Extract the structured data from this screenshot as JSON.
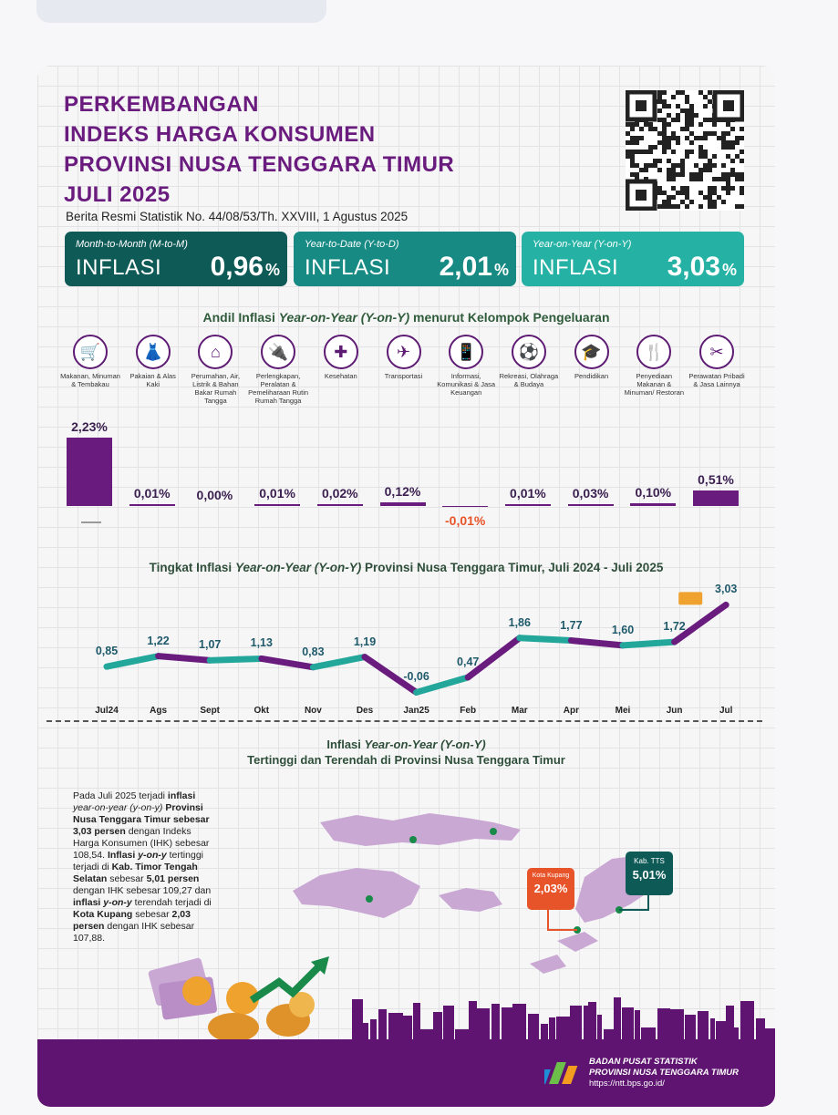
{
  "title": {
    "line1": "PERKEMBANGAN",
    "line2": "INDEKS HARGA KONSUMEN",
    "line3": "PROVINSI NUSA TENGGARA TIMUR",
    "line4": "JULI 2025"
  },
  "subtitle": "Berita Resmi Statistik No. 44/08/53/Th. XXVIII, 1 Agustus 2025",
  "boxes": [
    {
      "label": "Month-to-Month (M-to-M)",
      "word": "INFLASI",
      "value": "0,96",
      "unit": "%",
      "color": "#0d5a57"
    },
    {
      "label": "Year-to-Date (Y-to-D)",
      "word": "INFLASI",
      "value": "2,01",
      "unit": "%",
      "color": "#178a83"
    },
    {
      "label": "Year-on-Year (Y-on-Y)",
      "word": "INFLASI",
      "value": "3,03",
      "unit": "%",
      "color": "#25b2a4"
    }
  ],
  "andil_title": {
    "pre": "Andil Inflasi ",
    "em": "Year-on-Year (Y-on-Y)",
    "post": " menurut Kelompok Pengeluaran"
  },
  "chart_data": [
    {
      "type": "bar",
      "title": "Andil Inflasi Year-on-Year (Y-on-Y) menurut Kelompok Pengeluaran",
      "categories": [
        "Makanan, Minuman & Tembakau",
        "Pakaian & Alas Kaki",
        "Perumahan, Air, Listrik & Bahan Bakar Rumah Tangga",
        "Perlengkapan, Peralatan & Pemeliharaan Rutin Rumah Tangga",
        "Kesehatan",
        "Transportasi",
        "Informasi, Komunikasi & Jasa Keuangan",
        "Rekreasi, Olahraga & Budaya",
        "Pendidikan",
        "Penyediaan Makanan & Minuman/ Restoran",
        "Perawatan Pribadi & Jasa Lainnya"
      ],
      "values": [
        2.23,
        0.01,
        0.0,
        0.01,
        0.02,
        0.12,
        -0.01,
        0.01,
        0.03,
        0.1,
        0.51
      ],
      "value_labels": [
        "2,23%",
        "0,01%",
        "0,00%",
        "0,01%",
        "0,02%",
        "0,12%",
        "-0,01%",
        "0,01%",
        "0,03%",
        "0,10%",
        "0,51%"
      ],
      "ylim": [
        -0.3,
        2.23
      ]
    },
    {
      "type": "line",
      "title": "Tingkat Inflasi Year-on-Year (Y-on-Y) Provinsi Nusa Tenggara Timur, Juli 2024 - Juli 2025",
      "categories": [
        "Jul24",
        "Ags",
        "Sept",
        "Okt",
        "Nov",
        "Des",
        "Jan25",
        "Feb",
        "Mar",
        "Apr",
        "Mei",
        "Jun",
        "Jul"
      ],
      "values": [
        0.85,
        1.22,
        1.07,
        1.13,
        0.83,
        1.19,
        -0.06,
        0.47,
        1.86,
        1.77,
        1.6,
        1.72,
        3.03
      ],
      "value_labels": [
        "0,85",
        "1,22",
        "1,07",
        "1,13",
        "0,83",
        "1,19",
        "-0,06",
        "0,47",
        "1,86",
        "1,77",
        "1,60",
        "1,72",
        "3,03"
      ],
      "ylim": [
        -0.4,
        3.3
      ]
    }
  ],
  "line_title": {
    "pre": "Tingkat Inflasi ",
    "em": "Year-on-Year (Y-on-Y)",
    "post": " Provinsi Nusa Tenggara Timur, Juli 2024 - Juli 2025"
  },
  "map_title": {
    "l1_pre": "Inflasi ",
    "l1_em": "Year-on-Year (Y-on-Y)",
    "l2": "Tertinggi dan Terendah di Provinsi Nusa Tenggara Timur"
  },
  "description": {
    "s1": "Pada Juli 2025 terjadi ",
    "s2": "inflasi",
    "s3": "year-on-year (y-on-y)",
    "s4": "Provinsi Nusa Tenggara Timur",
    "s5": " sebesar 3,03 persen",
    "s6": " dengan Indeks Harga Konsumen (IHK) sebesar 108,54. ",
    "s7": "Inflasi ",
    "s8": "y-on-y",
    "s9": " tertinggi terjadi di ",
    "s10": "Kab. Timor Tengah Selatan",
    "s11": " sebesar ",
    "s12": "5,01 persen",
    "s13": " dengan IHK sebesar 109,27 dan ",
    "s14": "inflasi ",
    "s15": "y-on-y",
    "s16": " terendah terjadi di ",
    "s17": "Kota Kupang",
    "s18": " sebesar ",
    "s19": "2,03 persen",
    "s20": " dengan IHK sebesar 107,88."
  },
  "tags": {
    "kupang": {
      "name": "Kota Kupang",
      "value": "2,03%"
    },
    "tts": {
      "name": "Kab. TTS",
      "value": "5,01%"
    }
  },
  "footer": {
    "org1": "BADAN PUSAT STATISTIK",
    "org2": "PROVINSI NUSA TENGGARA TIMUR",
    "url": "https://ntt.bps.go.id/"
  },
  "colors": {
    "purple": "#6a1b7e",
    "teal": "#23a79a",
    "negative": "#e8542a",
    "footer": "#5e1470"
  }
}
